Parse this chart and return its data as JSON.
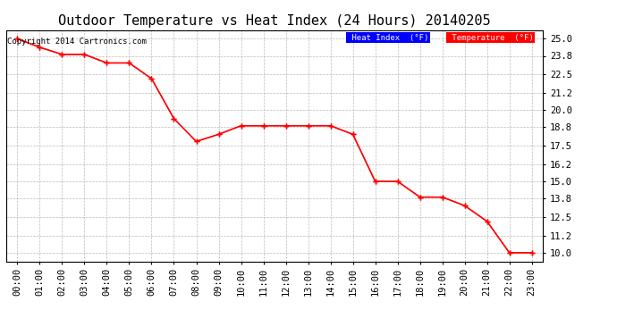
{
  "title": "Outdoor Temperature vs Heat Index (24 Hours) 20140205",
  "copyright": "Copyright 2014 Cartronics.com",
  "hours": [
    "00:00",
    "01:00",
    "02:00",
    "03:00",
    "04:00",
    "05:00",
    "06:00",
    "07:00",
    "08:00",
    "09:00",
    "10:00",
    "11:00",
    "12:00",
    "13:00",
    "14:00",
    "15:00",
    "16:00",
    "17:00",
    "18:00",
    "19:00",
    "20:00",
    "21:00",
    "22:00",
    "23:00"
  ],
  "temperature": [
    25.0,
    24.4,
    23.9,
    23.9,
    23.3,
    23.3,
    22.2,
    19.4,
    17.8,
    18.3,
    18.9,
    18.9,
    18.9,
    18.9,
    18.9,
    18.3,
    15.0,
    15.0,
    13.9,
    13.9,
    13.3,
    12.2,
    10.0,
    10.0
  ],
  "heat_index": [
    25.0,
    24.4,
    23.9,
    23.9,
    23.3,
    23.3,
    22.2,
    19.4,
    17.8,
    18.3,
    18.9,
    18.9,
    18.9,
    18.9,
    18.9,
    18.3,
    15.0,
    15.0,
    13.9,
    13.9,
    13.3,
    12.2,
    10.0,
    10.0
  ],
  "temp_color": "#ff0000",
  "heat_color": "#ff0000",
  "ylim_min": 9.4,
  "ylim_max": 25.6,
  "yticks": [
    10.0,
    11.2,
    12.5,
    13.8,
    15.0,
    16.2,
    17.5,
    18.8,
    20.0,
    21.2,
    22.5,
    23.8,
    25.0
  ],
  "background_color": "#ffffff",
  "grid_color": "#aaaaaa",
  "legend_heat_bg": "#0000ff",
  "legend_temp_bg": "#ff0000",
  "legend_text_color": "#ffffff",
  "title_fontsize": 11,
  "axis_fontsize": 7.5,
  "copyright_fontsize": 6.5
}
